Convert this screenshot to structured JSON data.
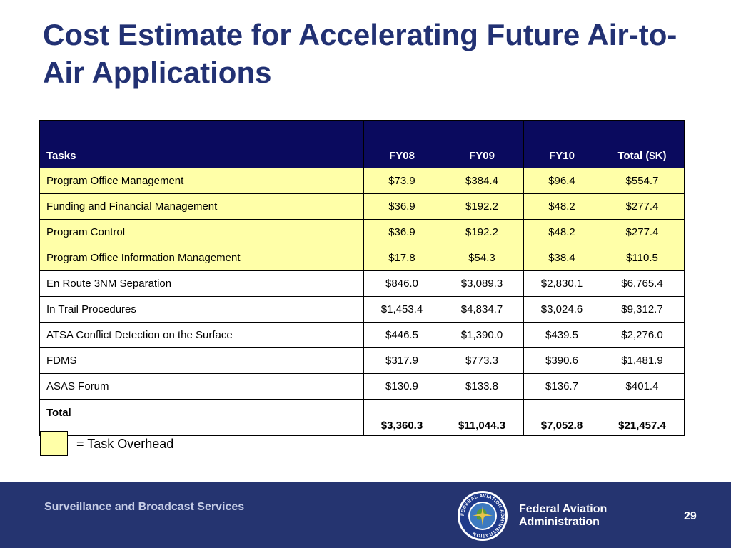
{
  "slide": {
    "title": "Cost Estimate for Accelerating Future Air-to-Air Applications"
  },
  "table": {
    "headers": [
      "Tasks",
      "FY08",
      "FY09",
      "FY10",
      "Total ($K)"
    ],
    "rows": [
      {
        "task": "Program Office Management",
        "fy08": "$73.9",
        "fy09": "$384.4",
        "fy10": "$96.4",
        "total": "$554.7",
        "overhead": true
      },
      {
        "task": "Funding and Financial Management",
        "fy08": "$36.9",
        "fy09": "$192.2",
        "fy10": "$48.2",
        "total": "$277.4",
        "overhead": true
      },
      {
        "task": "Program Control",
        "fy08": "$36.9",
        "fy09": "$192.2",
        "fy10": "$48.2",
        "total": "$277.4",
        "overhead": true
      },
      {
        "task": "Program Office Information Management",
        "fy08": "$17.8",
        "fy09": "$54.3",
        "fy10": "$38.4",
        "total": "$110.5",
        "overhead": true
      },
      {
        "task": "En Route 3NM Separation",
        "fy08": "$846.0",
        "fy09": "$3,089.3",
        "fy10": "$2,830.1",
        "total": "$6,765.4",
        "overhead": false
      },
      {
        "task": "In Trail Procedures",
        "fy08": "$1,453.4",
        "fy09": "$4,834.7",
        "fy10": "$3,024.6",
        "total": "$9,312.7",
        "overhead": false
      },
      {
        "task": "ATSA Conflict Detection on the Surface",
        "fy08": "$446.5",
        "fy09": "$1,390.0",
        "fy10": "$439.5",
        "total": "$2,276.0",
        "overhead": false
      },
      {
        "task": "FDMS",
        "fy08": "$317.9",
        "fy09": "$773.3",
        "fy10": "$390.6",
        "total": "$1,481.9",
        "overhead": false
      },
      {
        "task": "ASAS Forum",
        "fy08": "$130.9",
        "fy09": "$133.8",
        "fy10": "$136.7",
        "total": "$401.4",
        "overhead": false
      }
    ],
    "total_row": {
      "task": "Total",
      "fy08": "$3,360.3",
      "fy09": "$11,044.3",
      "fy10": "$7,052.8",
      "total": "$21,457.4"
    }
  },
  "legend": {
    "label": "= Task Overhead",
    "color": "#ffffa8"
  },
  "footer": {
    "left_text": "Surveillance and Broadcast Services",
    "agency_line1": "Federal Aviation",
    "agency_line2": "Administration",
    "page_number": "29",
    "seal_text": "FEDERAL AVIATION ADMINISTRATION",
    "background_color": "#253470"
  },
  "colors": {
    "title": "#223173",
    "header_bg": "#0a0a5e",
    "overhead_bg": "#ffffa8"
  }
}
